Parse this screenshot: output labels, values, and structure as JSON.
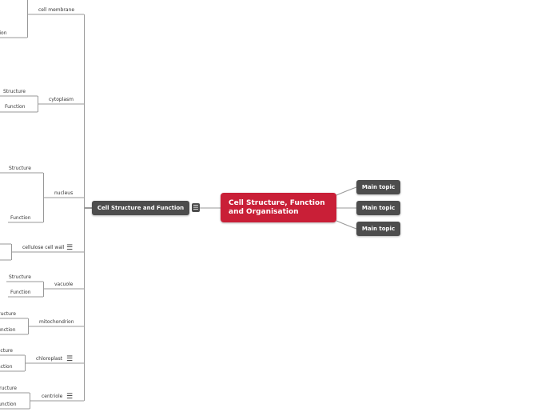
{
  "central": {
    "title": "Cell Structure, Function and Organisation",
    "color": "#c91f37"
  },
  "main_topics": [
    "Main topic",
    "Main topic",
    "Main topic"
  ],
  "subtopic": {
    "title": "Cell Structure and Function",
    "has_notes": true
  },
  "branches": [
    {
      "label": "cell membrane",
      "children": [
        "Function"
      ]
    },
    {
      "label": "cytoplasm",
      "children": [
        "Structure",
        "Function"
      ]
    },
    {
      "label": "nucleus",
      "children": [
        "Structure",
        "Function"
      ]
    },
    {
      "label": "cellulose cell wall",
      "has_notes": true,
      "children": []
    },
    {
      "label": "vacuole",
      "children": [
        "Structure",
        "Function"
      ]
    },
    {
      "label": "mitochondrion",
      "children": [
        "Structure",
        "Function"
      ]
    },
    {
      "label": "chloroplast",
      "has_notes": true,
      "children": [
        "Structure",
        "Function"
      ]
    },
    {
      "label": "centriole",
      "has_notes": true,
      "children": [
        "Structure",
        "Function"
      ]
    }
  ],
  "icons": {
    "notes": "menu-lines-icon"
  },
  "colors": {
    "node": "#4d4d4d",
    "line": "#999999"
  }
}
